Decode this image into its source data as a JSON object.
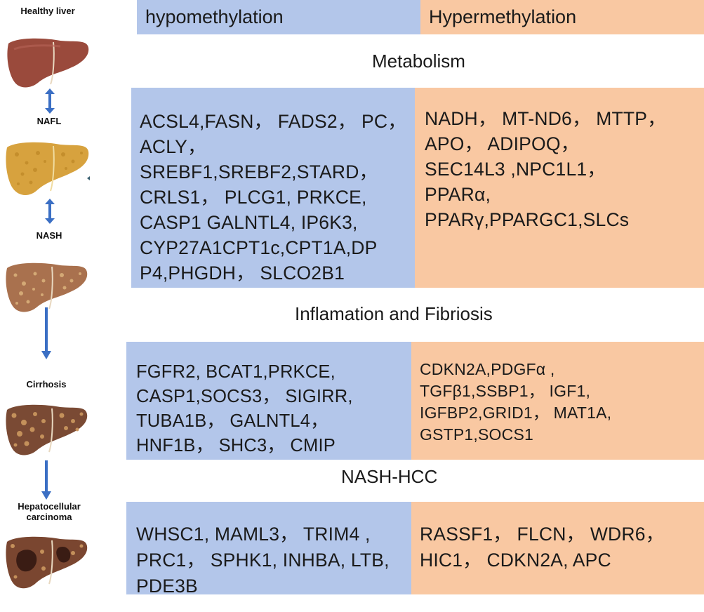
{
  "header": {
    "hypo": "hypomethylation",
    "hyper": "Hypermethylation"
  },
  "stages": {
    "healthy": "Healthy liver",
    "nafl": "NAFL",
    "nash": "NASH",
    "cirrhosis": "Cirrhosis",
    "hcc_line1": "Hepatocellular",
    "hcc_line2": "carcinoma"
  },
  "sections": {
    "metabolism": {
      "title": "Metabolism",
      "hypo": "ACSL4,FASN， FADS2， PC，\nACLY，\nSREBF1,SREBF2,STARD，\nCRLS1， PLCG1, PRKCE,\nCASP1 GALNTL4, IP6K3,\nCYP27A1CPT1c,CPT1A,DP\nP4,PHGDH， SLCO2B1",
      "hyper": "NADH， MT-ND6， MTTP，\nAPO， ADIPOQ，\nSEC14L3 ,NPC1L1，\nPPARα,\nPPARγ,PPARGC1,SLCs"
    },
    "inflammation": {
      "title": "Inflamation and Fibriosis",
      "hypo": "FGFR2, BCAT1,PRKCE,\nCASP1,SOCS3， SIGIRR,\nTUBA1B， GALNTL4，\nHNF1B， SHC3， CMIP",
      "hyper": "CDKN2A,PDGFα ,\nTGFβ1,SSBP1， IGF1,\nIGFBP2,GRID1， MAT1A,\nGSTP1,SOCS1"
    },
    "hcc": {
      "title": "NASH-HCC",
      "hypo": "WHSC1, MAML3， TRIM4 ,\nPRC1， SPHK1, INHBA, LTB,\nPDE3B",
      "hyper": "RASSF1， FLCN， WDR6，\nHIC1， CDKN2A, APC"
    }
  },
  "colors": {
    "hypo_blue": "#b3c6ea",
    "hyper_orange": "#f9c8a2",
    "arrow_blue": "#3b6fc4"
  }
}
